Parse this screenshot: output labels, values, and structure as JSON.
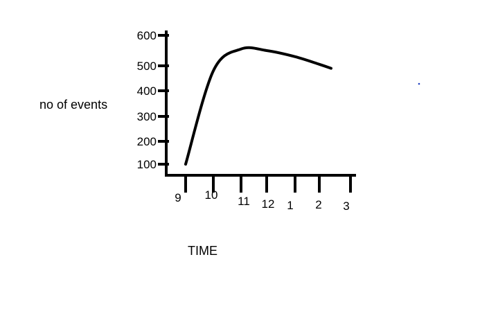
{
  "chart_data": {
    "type": "line",
    "title": "",
    "xlabel": "TIME",
    "ylabel": "no of events",
    "x_ticks": [
      "9",
      "10",
      "11",
      "12",
      "1",
      "2",
      "3"
    ],
    "y_ticks": [
      100,
      200,
      300,
      400,
      500,
      600
    ],
    "ylim": [
      50,
      600
    ],
    "grid": false,
    "legend": "none",
    "series": [
      {
        "x": [
          "9",
          "10",
          "11",
          "12",
          "1",
          "2",
          "2:30"
        ],
        "values": [
          100,
          480,
          555,
          550,
          530,
          505,
          490
        ]
      }
    ],
    "line_color": "#000000",
    "stray_mark_color": "#1f3fbf"
  }
}
